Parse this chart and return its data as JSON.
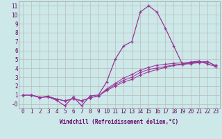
{
  "xlabel": "Windchill (Refroidissement éolien,°C)",
  "background_color": "#cce8e8",
  "line_color": "#993399",
  "grid_color": "#bbbbbb",
  "xlim": [
    -0.5,
    23.5
  ],
  "ylim": [
    -0.5,
    11.5
  ],
  "xticks": [
    0,
    1,
    2,
    3,
    4,
    5,
    6,
    7,
    8,
    9,
    10,
    11,
    12,
    13,
    14,
    15,
    16,
    17,
    18,
    19,
    20,
    21,
    22,
    23
  ],
  "yticks": [
    0,
    1,
    2,
    3,
    4,
    5,
    6,
    7,
    8,
    9,
    10,
    11
  ],
  "ytick_labels": [
    "-0",
    "1",
    "2",
    "3",
    "4",
    "5",
    "6",
    "7",
    "8",
    "9",
    "10",
    "11"
  ],
  "series": [
    [
      1.0,
      1.0,
      0.7,
      0.8,
      0.4,
      -0.2,
      0.8,
      -0.2,
      0.9,
      1.0,
      2.5,
      5.0,
      6.5,
      7.0,
      10.3,
      11.0,
      10.3,
      8.5,
      6.5,
      4.5,
      4.7,
      4.8,
      4.5,
      4.2
    ],
    [
      1.0,
      1.0,
      0.75,
      0.85,
      0.55,
      0.35,
      0.6,
      0.35,
      0.7,
      0.9,
      1.7,
      2.3,
      2.9,
      3.3,
      3.8,
      4.1,
      4.35,
      4.45,
      4.55,
      4.6,
      4.65,
      4.7,
      4.75,
      4.3
    ],
    [
      1.0,
      1.0,
      0.75,
      0.85,
      0.55,
      0.35,
      0.6,
      0.35,
      0.7,
      0.9,
      1.6,
      2.15,
      2.65,
      3.0,
      3.55,
      3.85,
      4.05,
      4.2,
      4.38,
      4.48,
      4.58,
      4.68,
      4.75,
      4.3
    ],
    [
      1.0,
      1.0,
      0.75,
      0.85,
      0.55,
      0.35,
      0.6,
      0.35,
      0.7,
      0.9,
      1.5,
      2.0,
      2.45,
      2.75,
      3.25,
      3.6,
      3.85,
      4.1,
      4.3,
      4.42,
      4.52,
      4.62,
      4.72,
      4.3
    ]
  ],
  "tick_fontsize": 5.5,
  "label_fontsize": 5.5
}
